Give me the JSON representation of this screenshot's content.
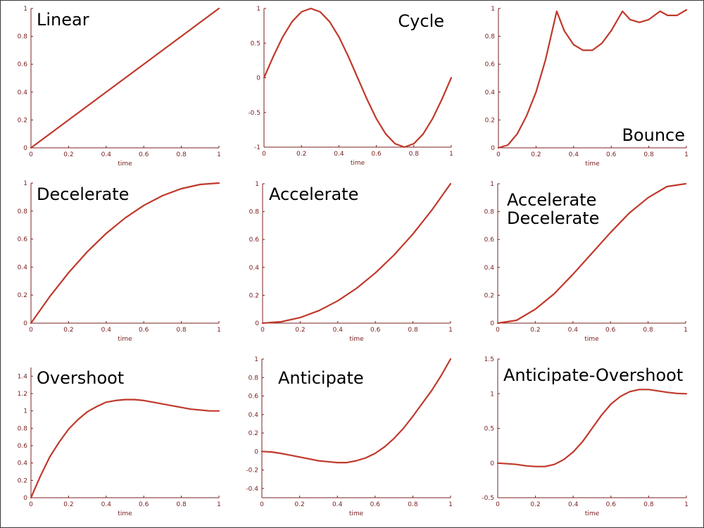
{
  "colors": {
    "curve": "#c0392b",
    "axis": "#7a2020"
  },
  "chart_data": [
    {
      "type": "line",
      "title": "Linear",
      "xlabel": "time",
      "xlim": [
        0,
        1
      ],
      "ylim": [
        0,
        1
      ],
      "xticks": [
        0,
        0.2,
        0.4,
        0.6,
        0.8,
        1
      ],
      "yticks": [
        0,
        0.2,
        0.4,
        0.6,
        0.8,
        1
      ],
      "series": [
        {
          "x": [
            0,
            0.1,
            0.2,
            0.3,
            0.4,
            0.5,
            0.6,
            0.7,
            0.8,
            0.9,
            1
          ],
          "y": [
            0,
            0.1,
            0.2,
            0.3,
            0.4,
            0.5,
            0.6,
            0.7,
            0.8,
            0.9,
            1
          ]
        }
      ]
    },
    {
      "type": "line",
      "title": "Cycle",
      "xlabel": "time",
      "xlim": [
        0,
        1
      ],
      "ylim": [
        -1,
        1
      ],
      "xticks": [
        0,
        0.2,
        0.4,
        0.6,
        0.8,
        1
      ],
      "yticks": [
        -1,
        -0.5,
        0,
        0.5,
        1
      ],
      "series": [
        {
          "x": [
            0,
            0.05,
            0.1,
            0.15,
            0.2,
            0.25,
            0.3,
            0.35,
            0.4,
            0.45,
            0.5,
            0.55,
            0.6,
            0.65,
            0.7,
            0.75,
            0.8,
            0.85,
            0.9,
            0.95,
            1
          ],
          "y": [
            0,
            0.31,
            0.59,
            0.81,
            0.95,
            1,
            0.95,
            0.81,
            0.59,
            0.31,
            0,
            -0.31,
            -0.59,
            -0.81,
            -0.95,
            -1,
            -0.95,
            -0.81,
            -0.59,
            -0.31,
            0
          ]
        }
      ]
    },
    {
      "type": "line",
      "title": "Bounce",
      "xlabel": "time",
      "xlim": [
        0,
        1
      ],
      "ylim": [
        0,
        1
      ],
      "xticks": [
        0,
        0.2,
        0.4,
        0.6,
        0.8,
        1
      ],
      "yticks": [
        0,
        0.2,
        0.4,
        0.6,
        0.8,
        1
      ],
      "series": [
        {
          "x": [
            0,
            0.05,
            0.1,
            0.15,
            0.2,
            0.25,
            0.31,
            0.35,
            0.4,
            0.45,
            0.5,
            0.55,
            0.6,
            0.66,
            0.7,
            0.75,
            0.8,
            0.86,
            0.9,
            0.95,
            1
          ],
          "y": [
            0,
            0.02,
            0.1,
            0.23,
            0.4,
            0.63,
            0.98,
            0.84,
            0.74,
            0.7,
            0.7,
            0.75,
            0.84,
            0.98,
            0.92,
            0.9,
            0.92,
            0.98,
            0.95,
            0.95,
            0.99
          ]
        }
      ]
    },
    {
      "type": "line",
      "title": "Decelerate",
      "xlabel": "time",
      "xlim": [
        0,
        1
      ],
      "ylim": [
        0,
        1
      ],
      "xticks": [
        0,
        0.2,
        0.4,
        0.6,
        0.8,
        1
      ],
      "yticks": [
        0,
        0.2,
        0.4,
        0.6,
        0.8,
        1
      ],
      "series": [
        {
          "x": [
            0,
            0.1,
            0.2,
            0.3,
            0.4,
            0.5,
            0.6,
            0.7,
            0.8,
            0.9,
            1
          ],
          "y": [
            0,
            0.19,
            0.36,
            0.51,
            0.64,
            0.75,
            0.84,
            0.91,
            0.96,
            0.99,
            1
          ]
        }
      ]
    },
    {
      "type": "line",
      "title": "Accelerate",
      "xlabel": "time",
      "xlim": [
        0,
        1
      ],
      "ylim": [
        0,
        1
      ],
      "xticks": [
        0,
        0.2,
        0.4,
        0.6,
        0.8,
        1
      ],
      "yticks": [
        0,
        0.2,
        0.4,
        0.6,
        0.8,
        1
      ],
      "series": [
        {
          "x": [
            0,
            0.1,
            0.2,
            0.3,
            0.4,
            0.5,
            0.6,
            0.7,
            0.8,
            0.9,
            1
          ],
          "y": [
            0,
            0.01,
            0.04,
            0.09,
            0.16,
            0.25,
            0.36,
            0.49,
            0.64,
            0.81,
            1
          ]
        }
      ]
    },
    {
      "type": "line",
      "title": "Accelerate Decelerate",
      "title_lines": [
        "Accelerate",
        "Decelerate"
      ],
      "xlabel": "time",
      "xlim": [
        0,
        1
      ],
      "ylim": [
        0,
        1
      ],
      "xticks": [
        0,
        0.2,
        0.4,
        0.6,
        0.8,
        1
      ],
      "yticks": [
        0,
        0.2,
        0.4,
        0.6,
        0.8,
        1
      ],
      "series": [
        {
          "x": [
            0,
            0.1,
            0.2,
            0.3,
            0.4,
            0.5,
            0.6,
            0.7,
            0.8,
            0.9,
            1
          ],
          "y": [
            0,
            0.02,
            0.1,
            0.21,
            0.35,
            0.5,
            0.65,
            0.79,
            0.9,
            0.98,
            1
          ]
        }
      ]
    },
    {
      "type": "line",
      "title": "Overshoot",
      "xlabel": "time",
      "xlim": [
        0,
        1
      ],
      "ylim": [
        0,
        1.5
      ],
      "xticks": [
        0,
        0.2,
        0.4,
        0.6,
        0.8,
        1
      ],
      "yticks": [
        0,
        0.2,
        0.4,
        0.6,
        0.8,
        1,
        1.2,
        1.4
      ],
      "series": [
        {
          "x": [
            0,
            0.05,
            0.1,
            0.15,
            0.2,
            0.25,
            0.3,
            0.35,
            0.4,
            0.45,
            0.5,
            0.55,
            0.6,
            0.65,
            0.7,
            0.75,
            0.8,
            0.85,
            0.9,
            0.95,
            1
          ],
          "y": [
            0,
            0.25,
            0.47,
            0.64,
            0.79,
            0.9,
            0.99,
            1.05,
            1.1,
            1.12,
            1.13,
            1.13,
            1.12,
            1.1,
            1.08,
            1.06,
            1.04,
            1.02,
            1.01,
            1,
            1
          ]
        }
      ]
    },
    {
      "type": "line",
      "title": "Anticipate",
      "xlabel": "time",
      "xlim": [
        0,
        1
      ],
      "ylim": [
        -0.5,
        1
      ],
      "xticks": [
        0,
        0.2,
        0.4,
        0.6,
        0.8,
        1
      ],
      "yticks": [
        -0.4,
        -0.2,
        0,
        0.2,
        0.4,
        0.6,
        0.8,
        1
      ],
      "series": [
        {
          "x": [
            0,
            0.05,
            0.1,
            0.15,
            0.2,
            0.25,
            0.3,
            0.35,
            0.4,
            0.45,
            0.5,
            0.55,
            0.6,
            0.65,
            0.7,
            0.75,
            0.8,
            0.85,
            0.9,
            0.95,
            1
          ],
          "y": [
            0,
            -0.005,
            -0.02,
            -0.04,
            -0.06,
            -0.08,
            -0.1,
            -0.11,
            -0.12,
            -0.12,
            -0.1,
            -0.07,
            -0.02,
            0.05,
            0.14,
            0.25,
            0.38,
            0.52,
            0.66,
            0.82,
            1
          ]
        }
      ]
    },
    {
      "type": "line",
      "title": "Anticipate-Overshoot",
      "xlabel": "time",
      "xlim": [
        0,
        1
      ],
      "ylim": [
        -0.5,
        1.5
      ],
      "xticks": [
        0,
        0.2,
        0.4,
        0.6,
        0.8,
        1
      ],
      "yticks": [
        -0.5,
        0,
        0.5,
        1,
        1.5
      ],
      "series": [
        {
          "x": [
            0,
            0.05,
            0.1,
            0.15,
            0.2,
            0.25,
            0.3,
            0.35,
            0.4,
            0.45,
            0.5,
            0.55,
            0.6,
            0.65,
            0.7,
            0.75,
            0.8,
            0.85,
            0.9,
            0.95,
            1
          ],
          "y": [
            0,
            -0.01,
            -0.02,
            -0.04,
            -0.05,
            -0.05,
            -0.02,
            0.05,
            0.16,
            0.31,
            0.5,
            0.69,
            0.85,
            0.96,
            1.03,
            1.06,
            1.06,
            1.04,
            1.02,
            1.005,
            1
          ]
        }
      ]
    }
  ]
}
